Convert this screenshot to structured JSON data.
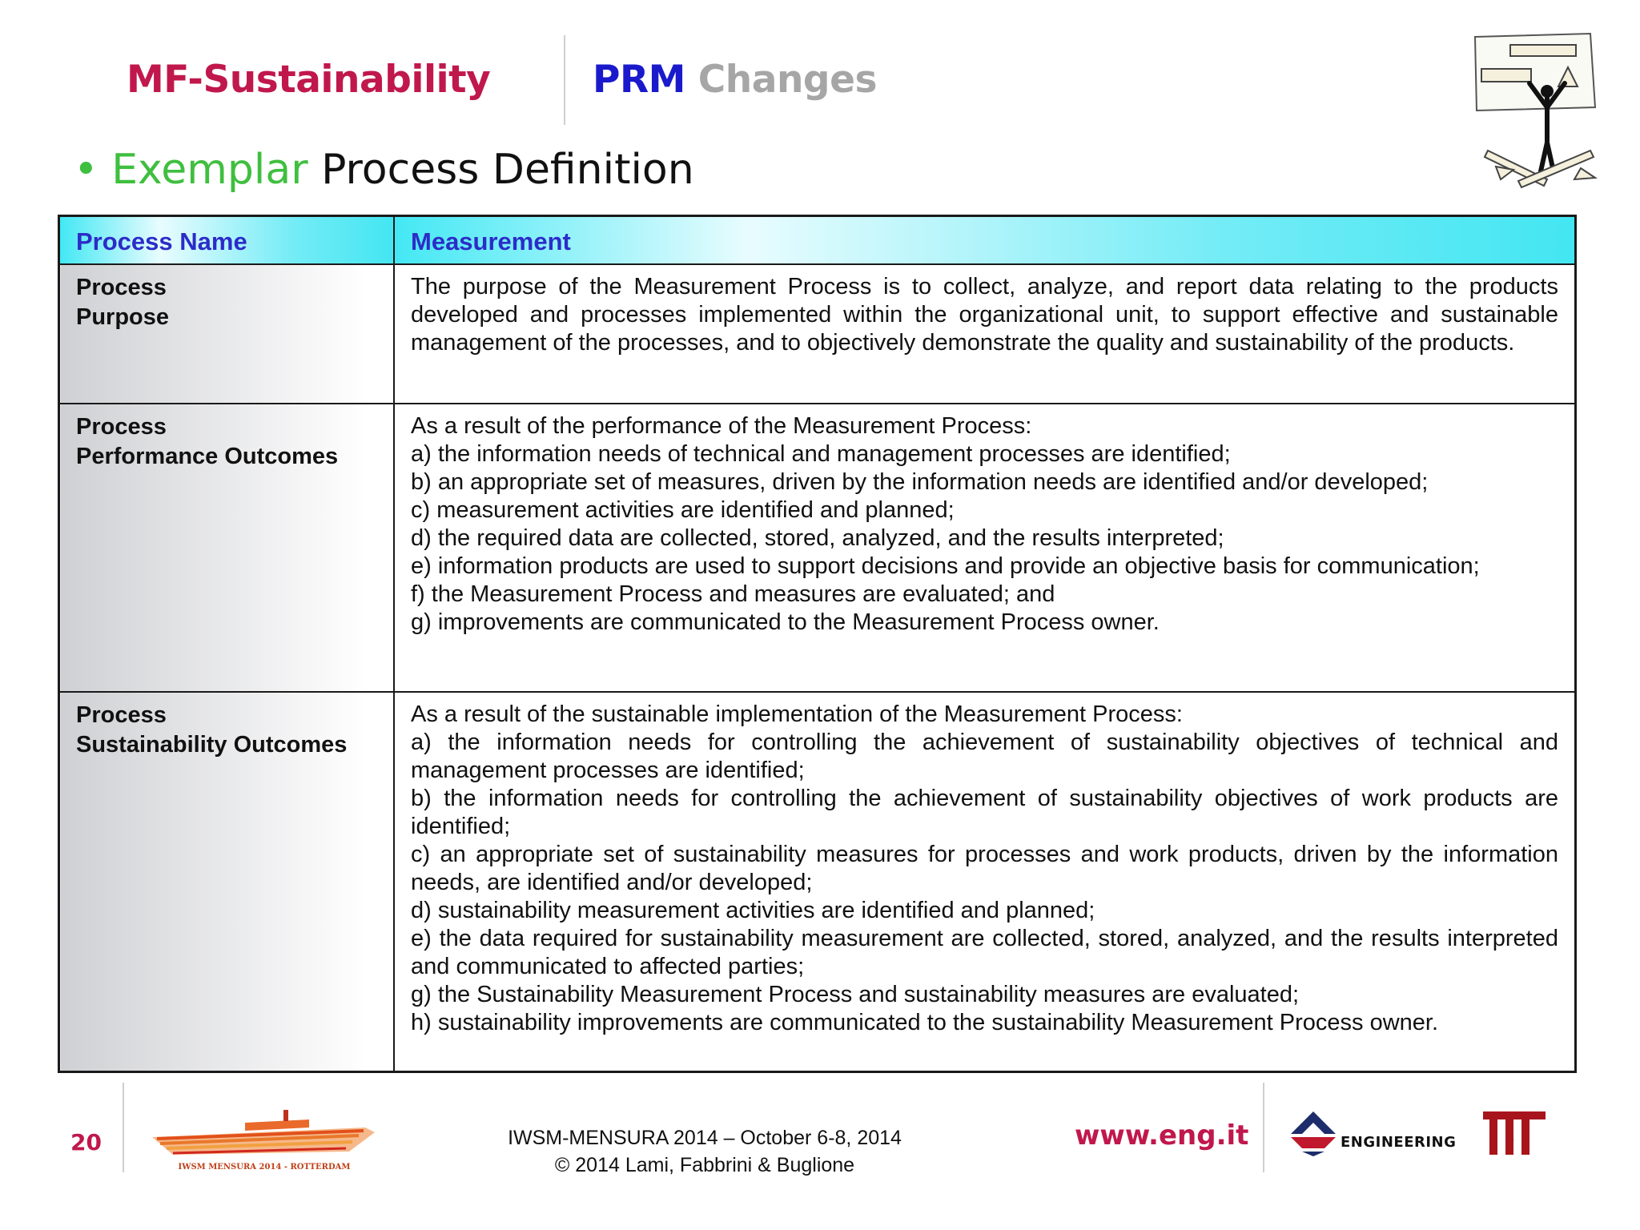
{
  "header": {
    "left_title": "MF-Sustainability",
    "right_title_strong": "PRM",
    "right_title_light": "Changes"
  },
  "subtitle": {
    "bullet": "•",
    "accent": "Exemplar",
    "rest": "Process Definition"
  },
  "table": {
    "head": {
      "col1": "Process Name",
      "col2": "Measurement"
    },
    "rows": [
      {
        "label_lines": [
          "Process",
          "Purpose"
        ],
        "text": "The purpose of the Measurement Process is to collect, analyze, and report data relating to the products developed and processes implemented within the organizational unit, to support effective and sustainable management of the processes, and to objectively demonstrate the quality and sustainability of the products."
      },
      {
        "label_lines": [
          "Process",
          "Performance Outcomes"
        ],
        "lines": [
          "As a result of the performance of the Measurement Process:",
          "a) the information needs of technical and management processes are identified;",
          "b) an appropriate set of measures, driven by the information needs are identified and/or developed;",
          "c) measurement activities are identified and planned;",
          "d) the required data are collected, stored, analyzed, and the results interpreted;",
          "e) information products are used to support decisions and provide an objective basis for communication;",
          "f) the Measurement Process and measures are evaluated; and",
          "g) improvements are communicated to the Measurement Process owner."
        ]
      },
      {
        "label_lines": [
          "Process",
          "Sustainability Outcomes"
        ],
        "lines": [
          "As a result of the sustainable implementation of the Measurement Process:",
          "a) the information needs for controlling the achievement of sustainability objectives of technical and management processes are identified;",
          "b) the information needs for controlling the achievement of sustainability objectives of work products are identified;",
          "c) an appropriate set of sustainability measures for processes and work products, driven by the information needs, are identified and/or developed;",
          "d) sustainability measurement activities are identified and planned;",
          "e) the data required for sustainability measurement are collected, stored, analyzed, and the results interpreted and communicated to affected parties;",
          "g) the Sustainability Measurement Process and sustainability measures are evaluated;",
          "h) sustainability improvements are communicated to the sustainability Measurement Process owner."
        ]
      }
    ]
  },
  "footer": {
    "page_number": "20",
    "ship_logo_text": "IWSM MENSURA 2014 - ROTTERDAM",
    "conference": "IWSM-MENSURA 2014 – October 6-8, 2014",
    "copyright": "© 2014 Lami, Fabbrini & Buglione",
    "url": "www.eng.it",
    "engineering_logo_text": "ENGINEERING",
    "isti_logo_text": "ISTI"
  },
  "colors": {
    "title_red": "#c0184c",
    "title_blue": "#1a1acc",
    "title_gray": "#a6a6a6",
    "accent_green": "#3fbf3f",
    "table_header_text": "#2c2cc8",
    "table_header_bg": "#43e8f4"
  },
  "icons": [
    "stick-figure-clipart",
    "ship-logo",
    "engineering-logo",
    "isti-logo"
  ]
}
